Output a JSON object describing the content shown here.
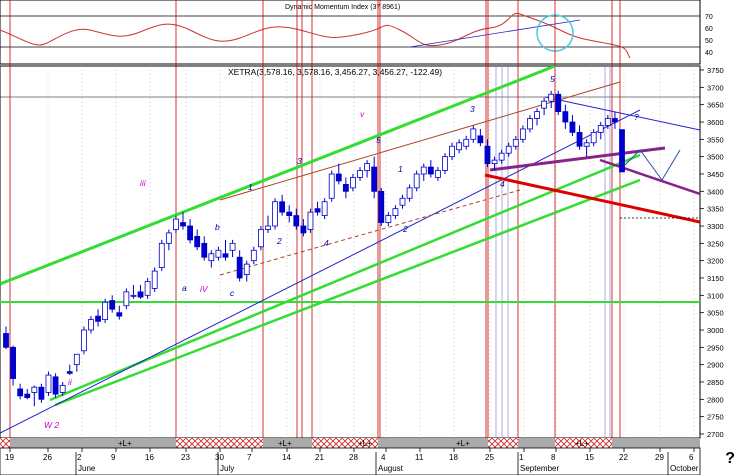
{
  "indicator_title": "Dynamic Momentum Index (37 8961)",
  "main_title": "XETRA(3,578.16, 3,578.16, 3,456.27, 3,456.27, -122.49)",
  "help_mark": "?",
  "colors": {
    "candle": "#0000cc",
    "green_line": "#33dd33",
    "red_line": "#dd0000",
    "purple_line": "#882288",
    "brown_line": "#aa4422",
    "blue_line": "#2222cc",
    "grid": "#000000",
    "band_fill": "#aaaaaa",
    "hatch": "#cc2222",
    "cycle_vline": "#cc0000",
    "label_blue": "#0000aa",
    "label_magenta": "#cc00cc",
    "indicator_line": "#cc3333"
  },
  "chart_data": {
    "type": "candlestick",
    "yscale": "linear",
    "ylim": [
      2700,
      3750
    ],
    "ymax_label": 3750,
    "y_ticks": [
      2700,
      2750,
      2800,
      2850,
      2900,
      2950,
      3000,
      3050,
      3100,
      3150,
      3200,
      3250,
      3300,
      3350,
      3400,
      3450,
      3500,
      3550,
      3600,
      3650,
      3700,
      3750
    ],
    "indicator_ticks": [
      40,
      50,
      60,
      70
    ],
    "x_day_labels": [
      "19",
      "26",
      "2",
      "9",
      "16",
      "23",
      "30",
      "7",
      "14",
      "21",
      "28",
      "4",
      "11",
      "18",
      "25",
      "1",
      "8",
      "15",
      "22",
      "29",
      "6"
    ],
    "x_month_labels": [
      "June",
      "July",
      "August",
      "September",
      "October"
    ],
    "band_labels": [
      "+L+",
      "+L+",
      "+L+",
      "+L+",
      "+L+"
    ],
    "wave_labels": [
      "W 2",
      "ii",
      "iii",
      "a",
      "b",
      "c",
      "iV",
      "1",
      "2",
      "3",
      "4",
      "5",
      "v",
      "1",
      "2",
      "3",
      "4",
      "5",
      "?"
    ],
    "candles": [
      [
        2990,
        3010,
        2945,
        2950
      ],
      [
        2950,
        2955,
        2840,
        2860
      ],
      [
        2830,
        2845,
        2800,
        2810
      ],
      [
        2815,
        2830,
        2800,
        2805
      ],
      [
        2820,
        2840,
        2780,
        2835
      ],
      [
        2835,
        2845,
        2790,
        2800
      ],
      [
        2820,
        2880,
        2810,
        2870
      ],
      [
        2865,
        2875,
        2805,
        2815
      ],
      [
        2820,
        2850,
        2810,
        2840
      ],
      [
        2880,
        2900,
        2870,
        2875
      ],
      [
        2900,
        2930,
        2880,
        2930
      ],
      [
        2940,
        3010,
        2930,
        3000
      ],
      [
        3000,
        3040,
        2990,
        3030
      ],
      [
        3040,
        3060,
        3010,
        3025
      ],
      [
        3030,
        3090,
        3020,
        3080
      ],
      [
        3085,
        3100,
        3050,
        3060
      ],
      [
        3050,
        3070,
        3030,
        3040
      ],
      [
        3070,
        3120,
        3060,
        3110
      ],
      [
        3100,
        3130,
        3090,
        3100
      ],
      [
        3110,
        3130,
        3090,
        3095
      ],
      [
        3100,
        3150,
        3090,
        3140
      ],
      [
        3120,
        3180,
        3110,
        3170
      ],
      [
        3180,
        3260,
        3170,
        3250
      ],
      [
        3250,
        3290,
        3230,
        3280
      ],
      [
        3290,
        3330,
        3280,
        3320
      ],
      [
        3310,
        3340,
        3290,
        3300
      ],
      [
        3300,
        3320,
        3250,
        3260
      ],
      [
        3270,
        3290,
        3230,
        3240
      ],
      [
        3250,
        3270,
        3200,
        3210
      ],
      [
        3200,
        3230,
        3180,
        3220
      ],
      [
        3210,
        3240,
        3200,
        3230
      ],
      [
        3220,
        3260,
        3200,
        3210
      ],
      [
        3230,
        3260,
        3210,
        3250
      ],
      [
        3210,
        3230,
        3140,
        3150
      ],
      [
        3160,
        3200,
        3140,
        3190
      ],
      [
        3200,
        3240,
        3190,
        3230
      ],
      [
        3240,
        3300,
        3230,
        3290
      ],
      [
        3290,
        3330,
        3280,
        3300
      ],
      [
        3300,
        3380,
        3290,
        3370
      ],
      [
        3370,
        3390,
        3330,
        3340
      ],
      [
        3340,
        3360,
        3310,
        3330
      ],
      [
        3330,
        3350,
        3290,
        3300
      ],
      [
        3300,
        3320,
        3270,
        3280
      ],
      [
        3290,
        3350,
        3280,
        3340
      ],
      [
        3350,
        3370,
        3330,
        3340
      ],
      [
        3330,
        3380,
        3320,
        3370
      ],
      [
        3380,
        3460,
        3370,
        3450
      ],
      [
        3450,
        3480,
        3420,
        3430
      ],
      [
        3420,
        3440,
        3380,
        3400
      ],
      [
        3410,
        3450,
        3400,
        3440
      ],
      [
        3440,
        3470,
        3430,
        3460
      ],
      [
        3460,
        3490,
        3440,
        3480
      ],
      [
        3470,
        3500,
        3380,
        3400
      ],
      [
        3400,
        3410,
        3300,
        3310
      ],
      [
        3310,
        3340,
        3300,
        3330
      ],
      [
        3330,
        3360,
        3320,
        3350
      ],
      [
        3360,
        3390,
        3350,
        3380
      ],
      [
        3380,
        3420,
        3370,
        3410
      ],
      [
        3410,
        3460,
        3400,
        3450
      ],
      [
        3450,
        3480,
        3430,
        3470
      ],
      [
        3470,
        3490,
        3440,
        3450
      ],
      [
        3440,
        3470,
        3430,
        3460
      ],
      [
        3460,
        3510,
        3450,
        3500
      ],
      [
        3500,
        3540,
        3490,
        3530
      ],
      [
        3520,
        3550,
        3510,
        3540
      ],
      [
        3530,
        3560,
        3520,
        3550
      ],
      [
        3550,
        3590,
        3540,
        3580
      ],
      [
        3560,
        3580,
        3530,
        3540
      ],
      [
        3530,
        3550,
        3470,
        3480
      ],
      [
        3480,
        3500,
        3460,
        3490
      ],
      [
        3490,
        3520,
        3480,
        3510
      ],
      [
        3510,
        3540,
        3500,
        3530
      ],
      [
        3530,
        3560,
        3520,
        3550
      ],
      [
        3550,
        3590,
        3540,
        3580
      ],
      [
        3580,
        3620,
        3570,
        3610
      ],
      [
        3610,
        3640,
        3590,
        3630
      ],
      [
        3640,
        3670,
        3620,
        3660
      ],
      [
        3660,
        3690,
        3640,
        3680
      ],
      [
        3680,
        3690,
        3620,
        3630
      ],
      [
        3630,
        3650,
        3580,
        3600
      ],
      [
        3600,
        3620,
        3560,
        3570
      ],
      [
        3570,
        3590,
        3520,
        3530
      ],
      [
        3530,
        3550,
        3500,
        3540
      ],
      [
        3540,
        3580,
        3530,
        3570
      ],
      [
        3570,
        3600,
        3550,
        3590
      ],
      [
        3590,
        3620,
        3580,
        3610
      ],
      [
        3610,
        3630,
        3580,
        3600
      ],
      [
        3578,
        3578,
        3456,
        3456
      ]
    ]
  }
}
